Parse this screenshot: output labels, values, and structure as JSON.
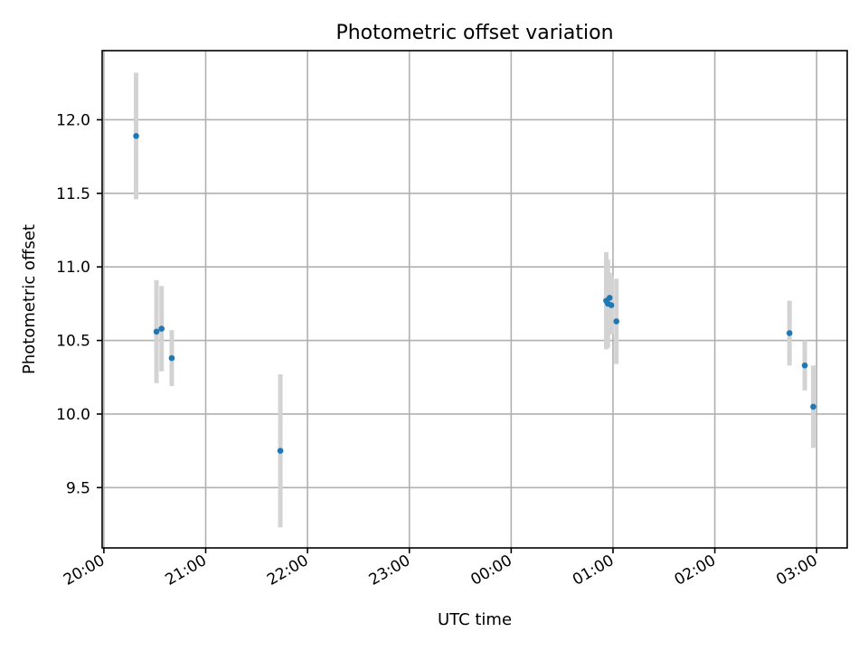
{
  "chart_data": {
    "type": "scatter",
    "title": "Photometric offset variation",
    "xlabel": "UTC time",
    "ylabel": "Photometric offset",
    "x_axis_type": "time",
    "xlim": [
      "19:59",
      "03:18"
    ],
    "ylim": [
      9.09,
      12.47
    ],
    "x_ticks": [
      "20:00",
      "21:00",
      "22:00",
      "23:00",
      "00:00",
      "01:00",
      "02:00",
      "03:00"
    ],
    "y_ticks": [
      9.5,
      10.0,
      10.5,
      11.0,
      11.5,
      12.0
    ],
    "grid": true,
    "legend": "none",
    "point_color": "#1f77b4",
    "errorbar_color": "#d3d3d3",
    "points": [
      {
        "x": "20:19",
        "y": 11.89,
        "err": 0.43
      },
      {
        "x": "20:31",
        "y": 10.56,
        "err": 0.35
      },
      {
        "x": "20:34",
        "y": 10.58,
        "err": 0.29
      },
      {
        "x": "20:40",
        "y": 10.38,
        "err": 0.19
      },
      {
        "x": "21:44",
        "y": 9.75,
        "err": 0.52
      },
      {
        "x": "00:56",
        "y": 10.77,
        "err": 0.33
      },
      {
        "x": "00:57",
        "y": 10.75,
        "err": 0.3
      },
      {
        "x": "00:58",
        "y": 10.79,
        "err": 0.17
      },
      {
        "x": "00:59",
        "y": 10.74,
        "err": 0.2
      },
      {
        "x": "01:02",
        "y": 10.63,
        "err": 0.29
      },
      {
        "x": "02:44",
        "y": 10.55,
        "err": 0.22
      },
      {
        "x": "02:53",
        "y": 10.33,
        "err": 0.17
      },
      {
        "x": "02:58",
        "y": 10.05,
        "err": 0.28
      }
    ]
  }
}
